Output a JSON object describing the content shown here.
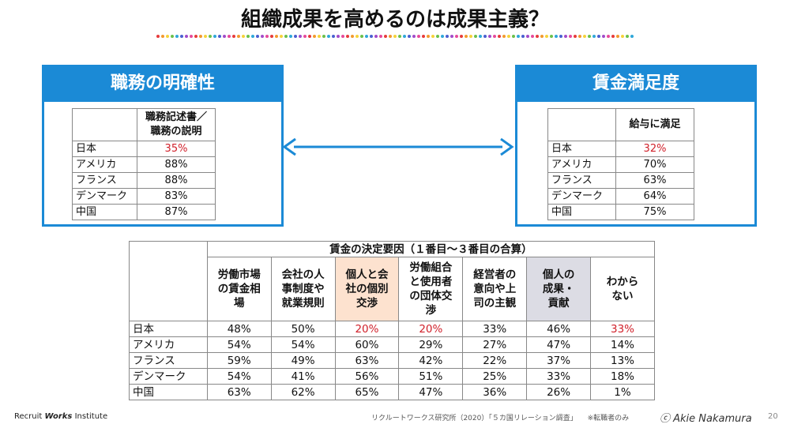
{
  "title": "組織成果を高めるのは成果主義？",
  "left_panel": {
    "title": "職務の明確性",
    "header_lines": [
      "職務記述書／",
      "職務の説明"
    ],
    "rows": [
      [
        "日本",
        "35%"
      ],
      [
        "アメリカ",
        "88%"
      ],
      [
        "フランス",
        "88%"
      ],
      [
        "デンマーク",
        "83%"
      ],
      [
        "中国",
        "87%"
      ]
    ],
    "emphasis": {
      "color": "#d0202a",
      "cells": [
        [
          0,
          1
        ]
      ]
    }
  },
  "right_panel": {
    "title": "賃金満足度",
    "header_lines": [
      "給与に満足"
    ],
    "rows": [
      [
        "日本",
        "32%"
      ],
      [
        "アメリカ",
        "70%"
      ],
      [
        "フランス",
        "63%"
      ],
      [
        "デンマーク",
        "64%"
      ],
      [
        "中国",
        "75%"
      ]
    ],
    "emphasis": {
      "color": "#d0202a",
      "cells": [
        [
          0,
          1
        ]
      ]
    }
  },
  "bottom_table": {
    "group_header": "賃金の決定要因（１番目～３番目の合算）",
    "columns": [
      [
        "労働市場",
        "の賃金相",
        "場"
      ],
      [
        "会社の人",
        "事制度や",
        "就業規則"
      ],
      [
        "個人と会",
        "社の個別",
        "交渉"
      ],
      [
        "労働組合",
        "と使用者",
        "の団体交",
        "渉"
      ],
      [
        "経営者の",
        "意向や上",
        "司の主観"
      ],
      [
        "個人の",
        "成果・",
        "貢献"
      ],
      [
        "わから",
        "ない"
      ]
    ],
    "column_fills": {
      "2": "#fde2cf",
      "5": "#dcdce4"
    },
    "rows": [
      [
        "日本",
        "48%",
        "50%",
        "20%",
        "20%",
        "33%",
        "46%",
        "33%"
      ],
      [
        "アメリカ",
        "54%",
        "54%",
        "60%",
        "29%",
        "27%",
        "47%",
        "14%"
      ],
      [
        "フランス",
        "59%",
        "49%",
        "63%",
        "42%",
        "22%",
        "37%",
        "13%"
      ],
      [
        "デンマーク",
        "54%",
        "41%",
        "56%",
        "51%",
        "25%",
        "33%",
        "18%"
      ],
      [
        "中国",
        "63%",
        "62%",
        "65%",
        "47%",
        "36%",
        "26%",
        "1%"
      ]
    ],
    "emphasis": {
      "color": "#d0202a",
      "cells": [
        [
          0,
          3
        ],
        [
          0,
          4
        ],
        [
          0,
          7
        ]
      ]
    }
  },
  "footer": {
    "logo": [
      "Recruit",
      "Works",
      "Institute"
    ],
    "source": "リクルートワークス研究所（2020）「５カ国リレーション調査」",
    "note": "※転職者のみ",
    "copyright": "ⓒ Akie Nakamura",
    "page": "20"
  }
}
